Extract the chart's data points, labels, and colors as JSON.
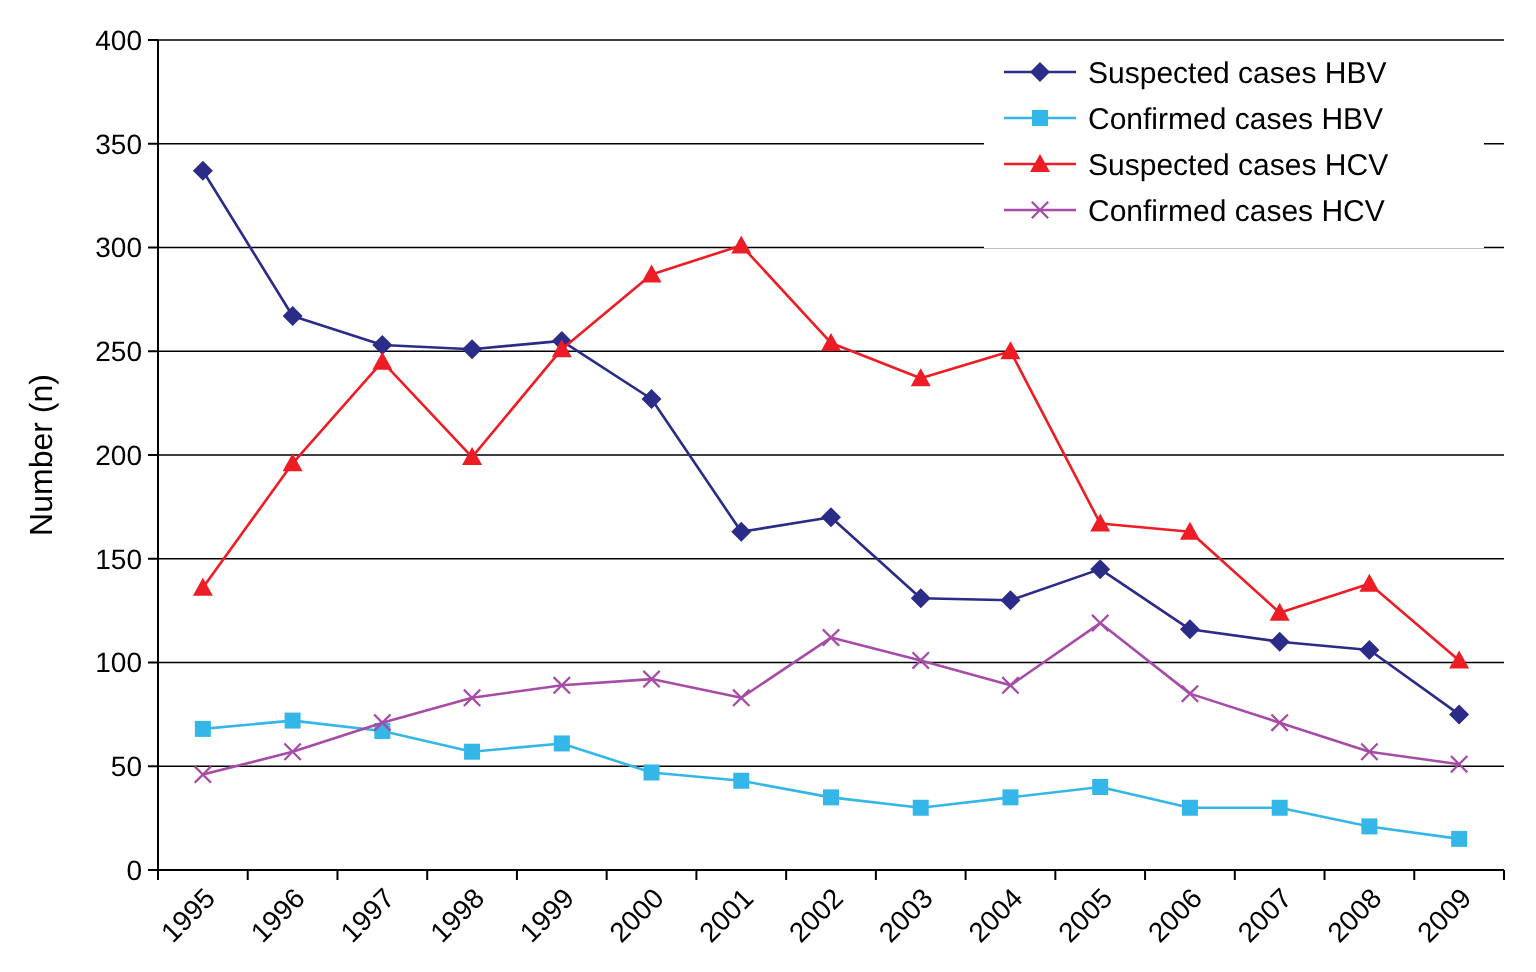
{
  "chart_data": {
    "type": "line",
    "ylabel": "Number (n)",
    "categories": [
      "1995",
      "1996",
      "1997",
      "1998",
      "1999",
      "2000",
      "2001",
      "2002",
      "2003",
      "2004",
      "2005",
      "2006",
      "2007",
      "2008",
      "2009"
    ],
    "series": [
      {
        "name": "Suspected cases HBV",
        "color": "#2b2b88",
        "marker": "diamond",
        "values": [
          337,
          267,
          253,
          251,
          255,
          227,
          163,
          170,
          131,
          130,
          145,
          116,
          110,
          106,
          75
        ]
      },
      {
        "name": "Confirmed cases HBV",
        "color": "#35b6e8",
        "marker": "square",
        "values": [
          68,
          72,
          67,
          57,
          61,
          47,
          43,
          35,
          30,
          35,
          40,
          30,
          30,
          21,
          15
        ]
      },
      {
        "name": "Suspected cases HCV",
        "color": "#ee1c24",
        "marker": "triangle",
        "values": [
          136,
          196,
          245,
          199,
          251,
          287,
          301,
          254,
          237,
          250,
          167,
          163,
          124,
          138,
          101
        ]
      },
      {
        "name": "Confirmed cases HCV",
        "color": "#a64ca6",
        "marker": "cross",
        "values": [
          46,
          57,
          71,
          83,
          89,
          92,
          83,
          112,
          101,
          89,
          119,
          85,
          71,
          57,
          51
        ]
      }
    ],
    "ylim": [
      0,
      400
    ],
    "yticks": [
      0,
      50,
      100,
      150,
      200,
      250,
      300,
      350,
      400
    ],
    "grid": "y",
    "legend": "top right"
  }
}
